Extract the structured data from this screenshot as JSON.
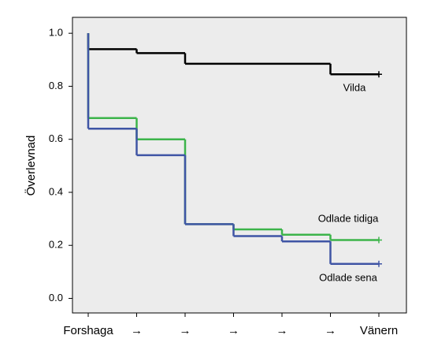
{
  "chart_data": {
    "type": "step",
    "y_label": "Överlevnad",
    "categories": [
      "Forshaga",
      "→",
      "→",
      "→",
      "→",
      "→",
      "Vänern"
    ],
    "ylim": [
      -0.055,
      1.06
    ],
    "yticks": [
      {
        "value": 0,
        "label": "0.0"
      },
      0.2,
      0.4,
      0.6,
      0.8,
      {
        "value": 1,
        "label": "1.0"
      }
    ],
    "series": [
      {
        "name": "Vilda",
        "color": "#000000",
        "start": 1,
        "values": [
          0.94,
          0.925,
          0.885,
          0.885,
          0.885,
          0.845,
          0.845
        ]
      },
      {
        "name": "Odlade tidiga",
        "color": "#3cb44a",
        "start": 1,
        "values": [
          0.68,
          0.6,
          0.28,
          0.26,
          0.24,
          0.22,
          0.22
        ]
      },
      {
        "name": "Odlade sena",
        "color": "#3f55a5",
        "start": 1,
        "values": [
          0.64,
          0.54,
          0.28,
          0.235,
          0.215,
          0.13,
          0.13
        ]
      }
    ]
  }
}
